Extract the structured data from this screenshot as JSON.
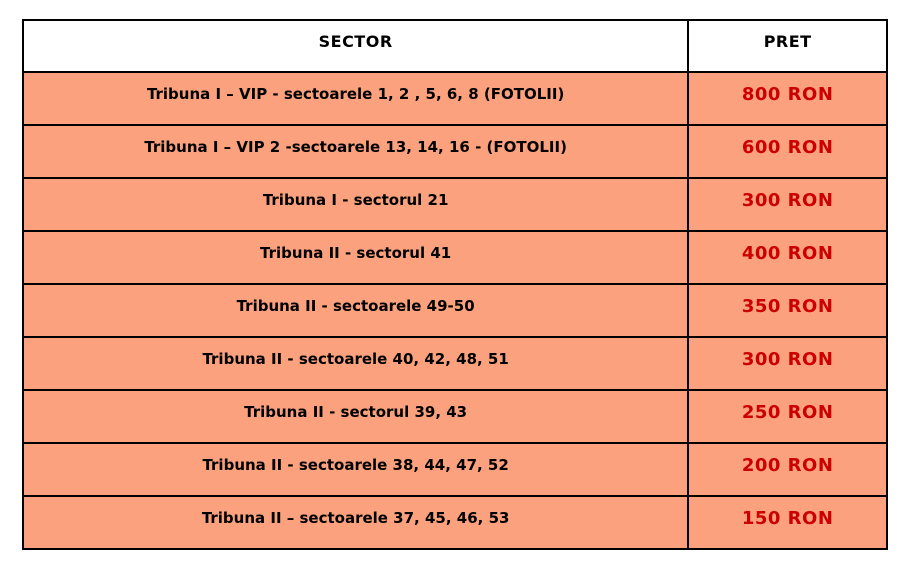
{
  "table": {
    "headers": {
      "sector": "SECTOR",
      "pret": "PRET"
    },
    "rows": [
      {
        "sector": "Tribuna I – VIP - sectoarele 1, 2 , 5, 6, 8 (FOTOLII)",
        "pret": "800 RON"
      },
      {
        "sector": "Tribuna I – VIP 2 -sectoarele 13, 14, 16 - (FOTOLII)",
        "pret": "600 RON"
      },
      {
        "sector": "Tribuna I - sectorul 21",
        "pret": "300 RON"
      },
      {
        "sector": "Tribuna II - sectorul 41",
        "pret": "400 RON"
      },
      {
        "sector": "Tribuna II - sectoarele 49-50",
        "pret": "350 RON"
      },
      {
        "sector": "Tribuna II - sectoarele 40, 42, 48, 51",
        "pret": "300 RON"
      },
      {
        "sector": "Tribuna II - sectorul 39, 43",
        "pret": "250 RON"
      },
      {
        "sector": "Tribuna II - sectoarele 38, 44, 47, 52",
        "pret": "200 RON"
      },
      {
        "sector": "Tribuna II – sectoarele 37, 45, 46, 53",
        "pret": "150 RON"
      }
    ],
    "colors": {
      "row_background": "#FBA17D",
      "header_background": "#FFFFFF",
      "sector_text": "#000000",
      "price_text": "#CC0000",
      "border": "#000000"
    }
  }
}
